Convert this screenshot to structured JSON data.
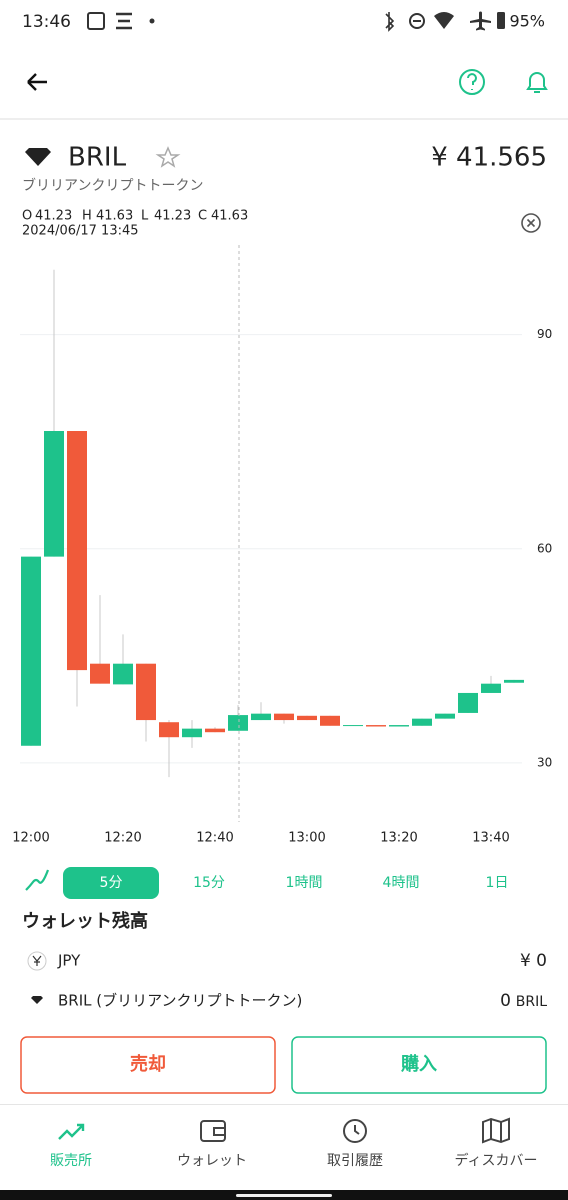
{
  "status_bar": {
    "time": "13:46",
    "battery": "95%"
  },
  "asset": {
    "symbol": "BRIL",
    "name": "ブリリアンクリプトトークン",
    "price": "¥ 41.565"
  },
  "ohlc_info": {
    "items": [
      {
        "label": "O",
        "value": "41.23"
      },
      {
        "label": "H",
        "value": "41.63"
      },
      {
        "label": "L",
        "value": "41.23"
      },
      {
        "label": "C",
        "value": "41.63"
      }
    ],
    "timestamp": "2024/06/17 13:45"
  },
  "chart_data": {
    "type": "candlestick",
    "categories": [
      "12:00",
      null,
      null,
      null,
      "12:20",
      null,
      null,
      null,
      "12:40",
      null,
      null,
      null,
      "13:00",
      null,
      null,
      null,
      "13:20",
      null,
      null,
      null,
      "13:40",
      null
    ],
    "open": [
      32.4,
      58.9,
      76.5,
      43.9,
      41.0,
      43.9,
      35.7,
      33.6,
      34.8,
      34.5,
      36.0,
      36.9,
      36.6,
      36.6,
      35.2,
      35.3,
      35.1,
      35.2,
      36.2,
      37.0,
      39.8,
      41.23
    ],
    "high": [
      58.9,
      99.1,
      76.5,
      53.5,
      48.0,
      43.9,
      36.0,
      36.0,
      35.0,
      38.1,
      38.5,
      36.9,
      36.6,
      36.6,
      35.3,
      35.3,
      35.3,
      36.2,
      36.9,
      39.8,
      42.2,
      41.63
    ],
    "low": [
      32.4,
      58.9,
      37.9,
      41.1,
      41.0,
      33.0,
      28.0,
      32.1,
      34.3,
      34.5,
      36.0,
      35.5,
      36.0,
      35.2,
      35.2,
      35.1,
      35.1,
      35.2,
      36.2,
      37.0,
      39.8,
      41.23
    ],
    "close": [
      58.9,
      76.5,
      43.0,
      41.1,
      43.9,
      36.0,
      33.6,
      34.8,
      34.3,
      36.7,
      36.9,
      36.0,
      36.0,
      35.2,
      35.3,
      35.1,
      35.3,
      36.2,
      36.9,
      39.8,
      41.1,
      41.63
    ],
    "up_color": "#1ec28b",
    "down_color": "#f05a3a",
    "ylim": [
      22,
      102
    ],
    "yticks": [
      30,
      60,
      90
    ],
    "grid": true
  },
  "intervals": {
    "options": [
      "5分",
      "15分",
      "1時間",
      "4時間",
      "1日"
    ],
    "selected": 0
  },
  "wallet": {
    "title": "ウォレット残高",
    "rows": [
      {
        "currency": "JPY",
        "amount": "¥ 0"
      },
      {
        "currency": "BRIL (ブリリアンクリプトトークン)",
        "amount": "0",
        "unit": "BRIL"
      }
    ]
  },
  "actions": {
    "sell": "売却",
    "buy": "購入"
  },
  "nav": {
    "items": [
      "販売所",
      "ウォレット",
      "取引履歴",
      "ディスカバー"
    ],
    "selected": 0
  }
}
